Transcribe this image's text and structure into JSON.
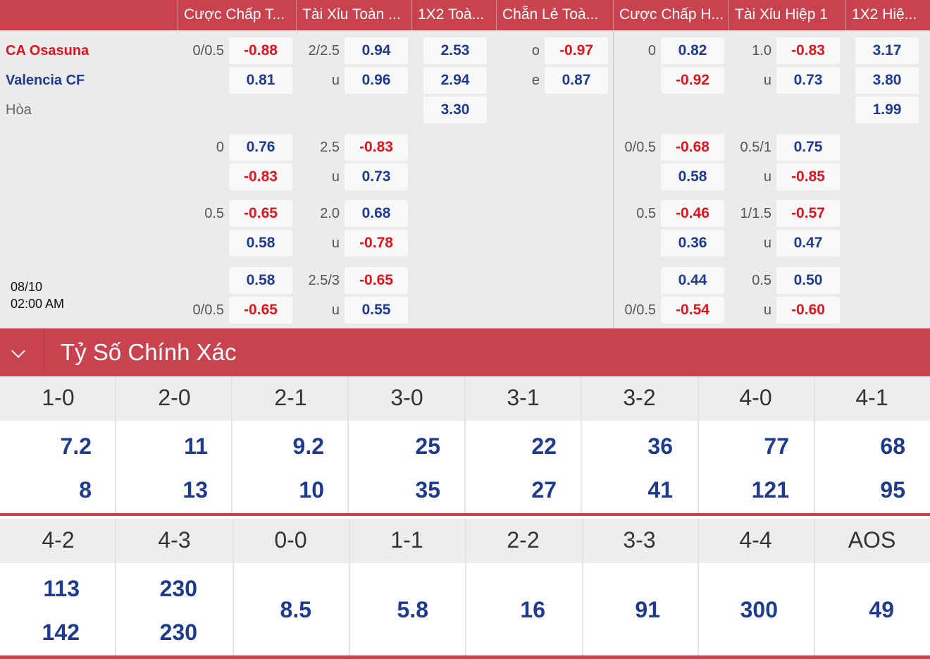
{
  "headers": [
    "Cược Chấp T...",
    "Tài Xỉu Toàn ...",
    "1X2 Toà...",
    "Chẵn Lẻ Toà...",
    "Cược Chấp H...",
    "Tài Xỉu Hiệp 1",
    "1X2 Hiệ..."
  ],
  "match": {
    "home": "CA Osasuna",
    "away": "Valencia CF",
    "draw": "Hòa",
    "date": "08/10",
    "time": "02:00 AM"
  },
  "labels": {
    "r0": [
      "0/0.5",
      "2/2.5",
      "o",
      "0",
      "1.0"
    ],
    "r1": [
      "u",
      "e",
      "u"
    ],
    "r3": [
      "0",
      "2.5",
      "0/0.5",
      "0.5/1"
    ],
    "r4": [
      "u",
      "u"
    ],
    "r5": [
      "0.5",
      "2.0",
      "0.5",
      "1/1.5"
    ],
    "r6": [
      "u",
      "u"
    ],
    "r7": [
      "2.5/3",
      "0.5"
    ],
    "r8": [
      "0/0.5",
      "u",
      "0/0.5",
      "u"
    ]
  },
  "odds": {
    "r0": [
      "-0.88",
      "0.94",
      "2.53",
      "-0.97",
      "0.82",
      "-0.83",
      "3.17"
    ],
    "r1": [
      "0.81",
      "0.96",
      "2.94",
      "0.87",
      "-0.92",
      "0.73",
      "3.80"
    ],
    "r2": [
      "3.30",
      "1.99"
    ],
    "r3": [
      "0.76",
      "-0.83",
      "-0.68",
      "0.75"
    ],
    "r4": [
      "-0.83",
      "0.73",
      "0.58",
      "-0.85"
    ],
    "r5": [
      "-0.65",
      "0.68",
      "-0.46",
      "-0.57"
    ],
    "r6": [
      "0.58",
      "-0.78",
      "0.36",
      "0.47"
    ],
    "r7": [
      "0.58",
      "-0.65",
      "0.44",
      "0.50"
    ],
    "r8": [
      "-0.65",
      "0.55",
      "-0.54",
      "-0.60"
    ]
  },
  "colors": {
    "accent": "#c9434f",
    "positive": "#1f3b8f",
    "negative": "#e0141e"
  },
  "section": {
    "title": "Tỷ Số Chính Xác",
    "icon": "chevron-down-icon"
  },
  "scores_row1": {
    "labels": [
      "1-0",
      "2-0",
      "2-1",
      "3-0",
      "3-1",
      "3-2",
      "4-0",
      "4-1"
    ],
    "home": [
      "7.2",
      "11",
      "9.2",
      "25",
      "22",
      "36",
      "77",
      "68"
    ],
    "away": [
      "8",
      "13",
      "10",
      "35",
      "27",
      "41",
      "121",
      "95"
    ]
  },
  "scores_row2": {
    "labels": [
      "4-2",
      "4-3",
      "0-0",
      "1-1",
      "2-2",
      "3-3",
      "4-4",
      "AOS"
    ],
    "home": [
      "113",
      "230"
    ],
    "away": [
      "142",
      "230"
    ],
    "single": [
      "8.5",
      "5.8",
      "16",
      "91",
      "300",
      "49"
    ]
  }
}
